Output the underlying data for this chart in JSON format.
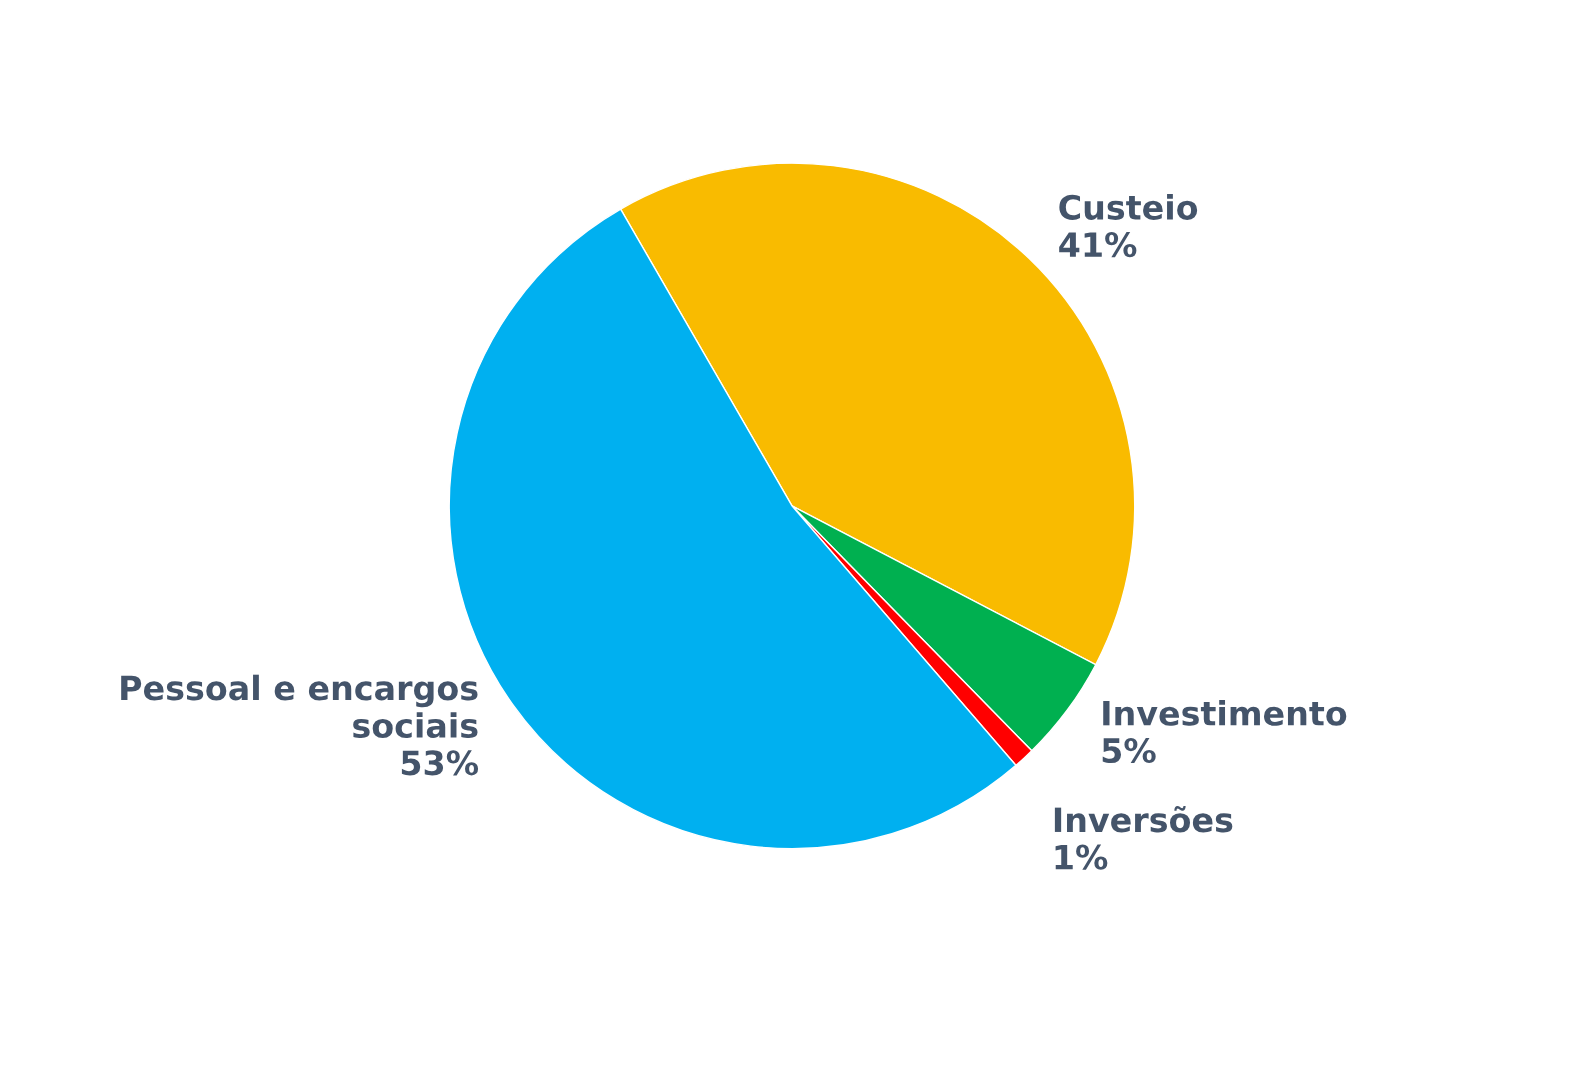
{
  "chart_data": {
    "type": "pie",
    "categories": [
      "Custeio",
      "Investimento",
      "Inversões",
      "Pessoal e encargos sociais"
    ],
    "values": [
      41,
      5,
      1,
      53
    ],
    "value_labels": [
      "41%",
      "5%",
      "1%",
      "53%"
    ],
    "colors": [
      "#f9bb00",
      "#00b050",
      "#ff0000",
      "#00b0f0"
    ],
    "legend": false
  }
}
